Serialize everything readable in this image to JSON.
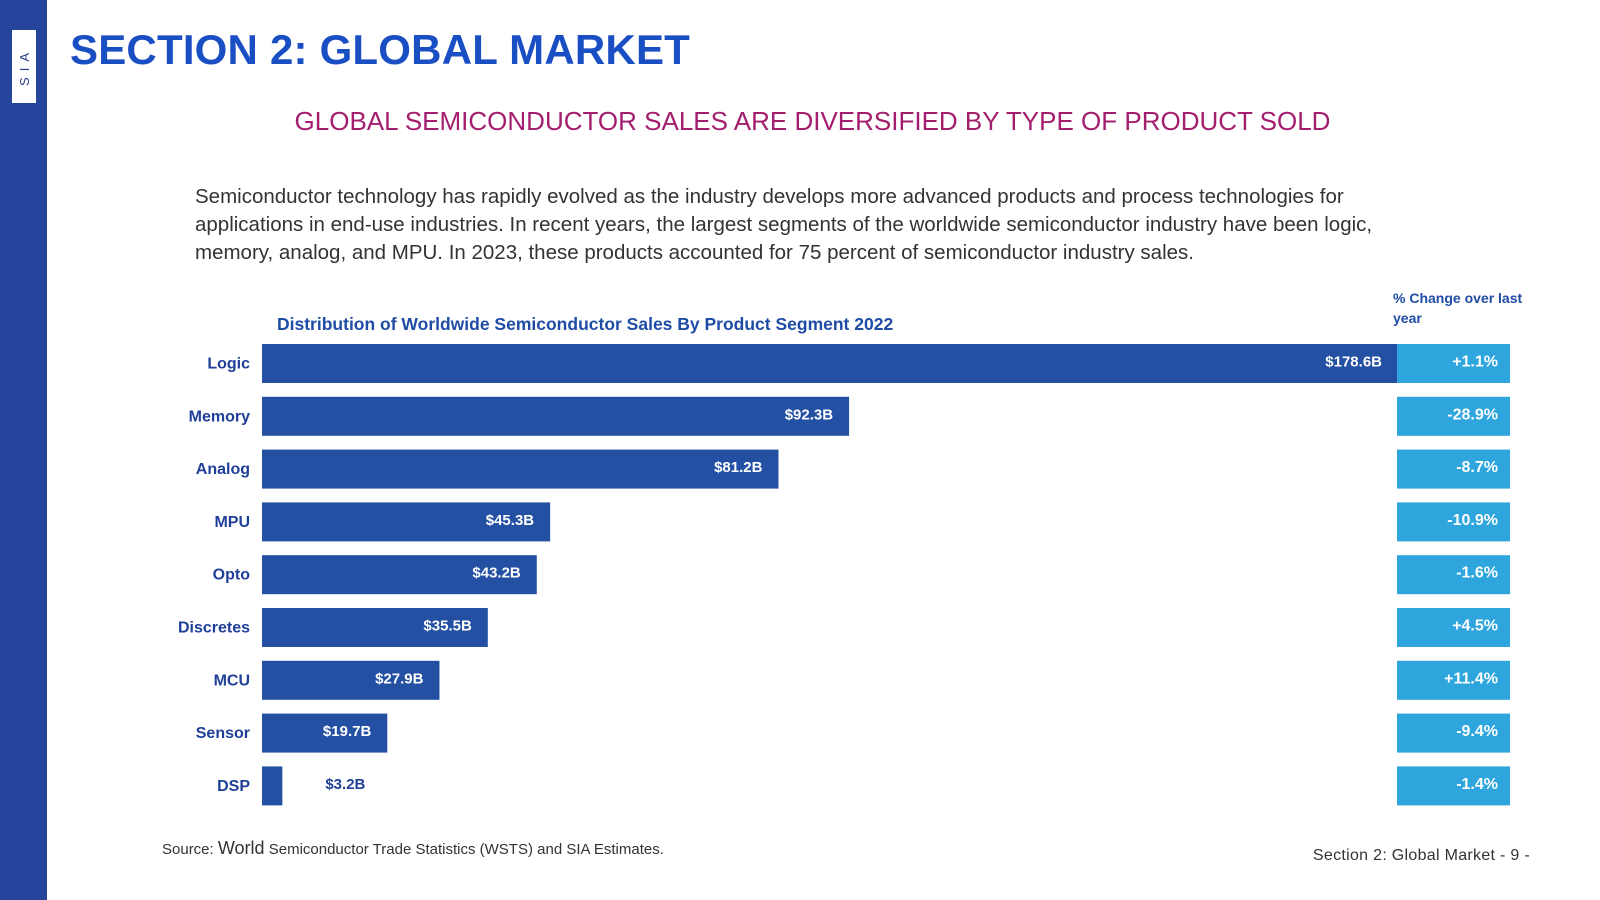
{
  "logo": {
    "text": "SIA"
  },
  "header": {
    "section_title": "SECTION 2: GLOBAL MARKET",
    "subtitle": "GLOBAL SEMICONDUCTOR SALES ARE DIVERSIFIED BY TYPE OF PRODUCT SOLD"
  },
  "intro_text": "Semiconductor technology has rapidly evolved as the industry develops more advanced products and process technologies for applications in end-use industries. In recent years, the largest segments of the worldwide semiconductor industry have been logic, memory, analog, and MPU. In 2023, these products accounted for 75 percent of semiconductor industry sales.",
  "chart_data": {
    "type": "bar",
    "orientation": "horizontal",
    "title": "Distribution of Worldwide Semiconductor Sales By Product Segment 2022",
    "categories": [
      "Logic",
      "Memory",
      "Analog",
      "MPU",
      "Opto",
      "Discretes",
      "MCU",
      "Sensor",
      "DSP"
    ],
    "values": [
      178.6,
      92.3,
      81.2,
      45.3,
      43.2,
      35.5,
      27.9,
      19.7,
      3.2
    ],
    "value_labels": [
      "$178.6B",
      "$92.3B",
      "$81.2B",
      "$45.3B",
      "$43.2B",
      "$35.5B",
      "$27.9B",
      "$19.7B",
      "$3.2B"
    ],
    "unit": "$B",
    "bar_color": "#2450a4",
    "change_header": "% Change over last year",
    "change_values": [
      1.1,
      -28.9,
      -8.7,
      -10.9,
      -1.6,
      4.5,
      11.4,
      -9.4,
      -1.4
    ],
    "change_labels": [
      "+1.1%",
      "-28.9%",
      "-8.7%",
      "-10.9%",
      "-1.6%",
      "+4.5%",
      "+11.4%",
      "-9.4%",
      "-1.4%"
    ],
    "change_color": "#2ea6dd"
  },
  "source": {
    "prefix": "Source: ",
    "world": "World",
    "rest": " Semiconductor Trade Statistics (WSTS) and SIA Estimates."
  },
  "footer": {
    "page_label": "Section 2: Global Market - 9 -"
  },
  "colors": {
    "sidebar": "#27449c",
    "title": "#1a4fc4",
    "subtitle": "#a41e6e",
    "chart_text": "#1f4ca5"
  }
}
